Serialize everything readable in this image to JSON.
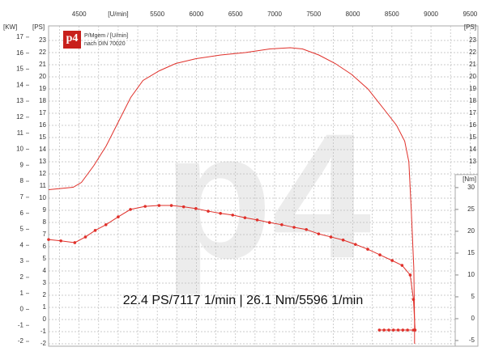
{
  "chart_data": {
    "type": "line",
    "watermark": "p4",
    "logo": "p4",
    "legend_lines": [
      "P/Mgem / [U/min]",
      "nach DIN 70020"
    ],
    "annotation": "22.4 PS/7117 1/min | 26.1 Nm/5596 1/min",
    "xlabel": "[U/min]",
    "xlim": [
      4110,
      9600
    ],
    "xticks": [
      4500,
      5500,
      6000,
      6500,
      7000,
      7500,
      8000,
      8500,
      9000,
      9500
    ],
    "xgrid": [
      4250,
      4500,
      4750,
      5000,
      5250,
      5500,
      5750,
      6000,
      6250,
      6500,
      6750,
      7000,
      7250,
      7500,
      7750,
      8000,
      8250,
      8500,
      8750,
      9000,
      9250,
      9500
    ],
    "ylabel": "[PS]",
    "ylim": [
      -2.2,
      24.2
    ],
    "yticks": [
      -2,
      -1,
      0,
      1,
      2,
      3,
      4,
      5,
      6,
      7,
      8,
      9,
      10,
      11,
      12,
      13,
      14,
      15,
      16,
      17,
      18,
      19,
      20,
      21,
      22,
      23
    ],
    "y3label": "[KW]",
    "y3lim": [
      -2.3,
      17.7
    ],
    "y3ticks": [
      -2,
      -1,
      0,
      1,
      2,
      3,
      4,
      5,
      6,
      7,
      8,
      9,
      10,
      11,
      12,
      13,
      14,
      15,
      16,
      17
    ],
    "y2label": "[Nm]",
    "y2lim": [
      -6.3,
      67
    ],
    "y2ticks": [
      -5,
      0,
      5,
      10,
      15,
      20,
      25,
      30
    ],
    "grid": true,
    "series": [
      {
        "color": "#e0302a",
        "axis": "y",
        "markers": false,
        "x": [
          4110,
          4424,
          4530,
          4690,
          4846,
          5003,
          5160,
          5317,
          5526,
          5736,
          5997,
          6311,
          6625,
          6939,
          7200,
          7357,
          7566,
          7775,
          7985,
          8194,
          8403,
          8560,
          8664,
          8717,
          8748,
          8780,
          8790,
          8790
        ],
        "values": [
          10.7,
          10.9,
          11.3,
          12.7,
          14.3,
          16.3,
          18.3,
          19.7,
          20.5,
          21.1,
          21.5,
          21.8,
          22.0,
          22.3,
          22.4,
          22.3,
          21.8,
          21.1,
          20.2,
          19.0,
          17.3,
          16.0,
          14.7,
          13.0,
          9.0,
          4.3,
          0,
          -2
        ]
      },
      {
        "color": "#e0302a",
        "axis": "y2",
        "markers": true,
        "x": [
          4110,
          4267,
          4445,
          4581,
          4706,
          4843,
          5000,
          5157,
          5345,
          5523,
          5680,
          5837,
          5994,
          6151,
          6308,
          6464,
          6621,
          6778,
          6935,
          7092,
          7249,
          7406,
          7563,
          7720,
          7877,
          8034,
          8191,
          8347,
          8504,
          8630,
          8734,
          8776,
          8797
        ],
        "values": [
          18.1,
          17.8,
          17.4,
          18.7,
          20.2,
          21.5,
          23.3,
          25.0,
          25.7,
          25.9,
          25.9,
          25.6,
          25.2,
          24.6,
          24.1,
          23.7,
          23.1,
          22.6,
          22.0,
          21.5,
          20.9,
          20.4,
          19.4,
          18.7,
          18.0,
          17.0,
          15.9,
          14.6,
          13.3,
          12.2,
          10.0,
          4.4,
          -2.6
        ]
      },
      {
        "color": "#e0302a",
        "axis": "y2",
        "markers": true,
        "x": [
          8340,
          8400,
          8460,
          8520,
          8580,
          8640,
          8700,
          8776
        ],
        "values": [
          -2.6,
          -2.6,
          -2.6,
          -2.6,
          -2.6,
          -2.6,
          -2.6,
          -2.6
        ]
      }
    ]
  }
}
